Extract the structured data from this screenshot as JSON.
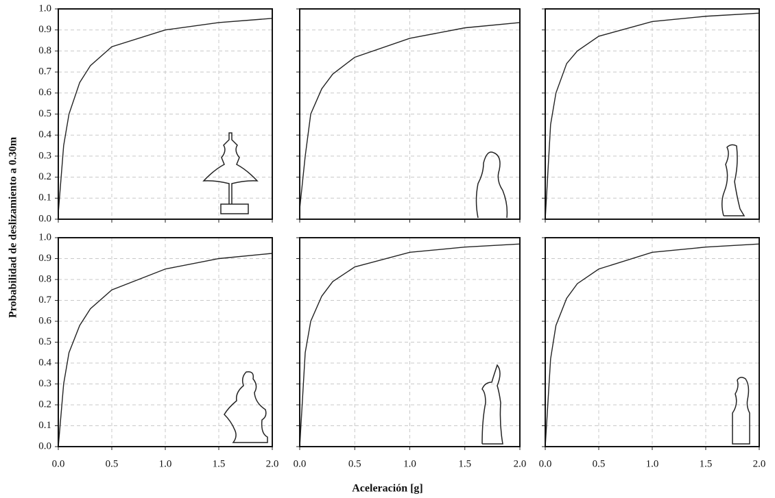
{
  "ylabel": "Probabilidad de deslizamiento a 0.30m",
  "xlabel": "Aceleración [g]",
  "chart_data": [
    {
      "type": "line",
      "x": [
        0,
        0.05,
        0.1,
        0.2,
        0.3,
        0.5,
        1.0,
        1.5,
        2.0
      ],
      "values": [
        0.03,
        0.35,
        0.5,
        0.65,
        0.73,
        0.82,
        0.9,
        0.935,
        0.955
      ],
      "color": "#222222",
      "xlim": [
        0,
        2
      ],
      "ylim": [
        0,
        1
      ],
      "xticks": [
        0,
        0.5,
        1,
        1.5,
        2
      ],
      "yticks": [
        {
          "value": 0,
          "label": "0.0"
        },
        {
          "value": 0.1,
          "label": "0.1"
        },
        {
          "value": 0.2,
          "label": "0.2"
        },
        {
          "value": 0.3,
          "label": "0.3"
        },
        {
          "value": 0.4,
          "label": "0.4"
        },
        {
          "value": 0.5,
          "label": "0.5"
        },
        {
          "value": 0.6,
          "label": "0.6"
        },
        {
          "value": 0.7,
          "label": "0.7"
        },
        {
          "value": 0.8,
          "label": "0.8"
        },
        {
          "value": 0.9,
          "label": "0.9"
        },
        {
          "value": 1,
          "label": "1.0"
        }
      ],
      "grid": true
    },
    {
      "type": "line",
      "x": [
        0,
        0.05,
        0.1,
        0.2,
        0.3,
        0.5,
        1.0,
        1.5,
        2.0
      ],
      "values": [
        0.05,
        0.3,
        0.5,
        0.62,
        0.69,
        0.77,
        0.86,
        0.91,
        0.935
      ],
      "color": "#222222",
      "xlim": [
        0,
        2
      ],
      "ylim": [
        0,
        1
      ],
      "xticks": [
        0,
        0.5,
        1,
        1.5,
        2
      ],
      "yticks": [
        0,
        0.1,
        0.2,
        0.3,
        0.4,
        0.5,
        0.6,
        0.7,
        0.8,
        0.9,
        1
      ],
      "grid": true
    },
    {
      "type": "line",
      "x": [
        0,
        0.05,
        0.1,
        0.2,
        0.3,
        0.5,
        1.0,
        1.5,
        2.0
      ],
      "values": [
        0,
        0.45,
        0.6,
        0.74,
        0.8,
        0.87,
        0.94,
        0.965,
        0.98
      ],
      "color": "#222222",
      "xlim": [
        0,
        2
      ],
      "ylim": [
        0,
        1
      ],
      "xticks": [
        0,
        0.5,
        1,
        1.5,
        2
      ],
      "yticks": [
        0,
        0.1,
        0.2,
        0.3,
        0.4,
        0.5,
        0.6,
        0.7,
        0.8,
        0.9,
        1
      ],
      "grid": true
    },
    {
      "type": "line",
      "x": [
        0,
        0.05,
        0.1,
        0.2,
        0.3,
        0.5,
        1.0,
        1.5,
        2.0
      ],
      "values": [
        0,
        0.3,
        0.45,
        0.58,
        0.66,
        0.75,
        0.85,
        0.9,
        0.925
      ],
      "color": "#222222",
      "xlim": [
        0,
        2
      ],
      "ylim": [
        0,
        1
      ],
      "xticks": [
        {
          "value": 0,
          "label": "0.0"
        },
        {
          "value": 0.5,
          "label": "0.5"
        },
        {
          "value": 1,
          "label": "1.0"
        },
        {
          "value": 1.5,
          "label": "1.5"
        },
        {
          "value": 2,
          "label": "2.0"
        }
      ],
      "yticks": [
        {
          "value": 0,
          "label": "0.0"
        },
        {
          "value": 0.1,
          "label": "0.1"
        },
        {
          "value": 0.2,
          "label": "0.2"
        },
        {
          "value": 0.3,
          "label": "0.3"
        },
        {
          "value": 0.4,
          "label": "0.4"
        },
        {
          "value": 0.5,
          "label": "0.5"
        },
        {
          "value": 0.6,
          "label": "0.6"
        },
        {
          "value": 0.7,
          "label": "0.7"
        },
        {
          "value": 0.8,
          "label": "0.8"
        },
        {
          "value": 0.9,
          "label": "0.9"
        },
        {
          "value": 1,
          "label": "1.0"
        }
      ],
      "grid": true
    },
    {
      "type": "line",
      "x": [
        0,
        0.05,
        0.1,
        0.2,
        0.3,
        0.5,
        1.0,
        1.5,
        2.0
      ],
      "values": [
        0,
        0.45,
        0.6,
        0.72,
        0.79,
        0.86,
        0.93,
        0.955,
        0.97
      ],
      "color": "#222222",
      "xlim": [
        0,
        2
      ],
      "ylim": [
        0,
        1
      ],
      "xticks": [
        {
          "value": 0,
          "label": "0.0"
        },
        {
          "value": 0.5,
          "label": "0.5"
        },
        {
          "value": 1,
          "label": "1.0"
        },
        {
          "value": 1.5,
          "label": "1.5"
        },
        {
          "value": 2,
          "label": "2.0"
        }
      ],
      "yticks": [
        0,
        0.1,
        0.2,
        0.3,
        0.4,
        0.5,
        0.6,
        0.7,
        0.8,
        0.9,
        1
      ],
      "grid": true
    },
    {
      "type": "line",
      "x": [
        0,
        0.05,
        0.1,
        0.2,
        0.3,
        0.5,
        1.0,
        1.5,
        2.0
      ],
      "values": [
        0,
        0.42,
        0.58,
        0.71,
        0.78,
        0.85,
        0.93,
        0.955,
        0.97
      ],
      "color": "#222222",
      "xlim": [
        0,
        2
      ],
      "ylim": [
        0,
        1
      ],
      "xticks": [
        {
          "value": 0,
          "label": "0.0"
        },
        {
          "value": 0.5,
          "label": "0.5"
        },
        {
          "value": 1,
          "label": "1.0"
        },
        {
          "value": 1.5,
          "label": "1.5"
        },
        {
          "value": 2,
          "label": "2.0"
        }
      ],
      "yticks": [
        0,
        0.1,
        0.2,
        0.3,
        0.4,
        0.5,
        0.6,
        0.7,
        0.8,
        0.9,
        1
      ],
      "grid": true
    }
  ]
}
